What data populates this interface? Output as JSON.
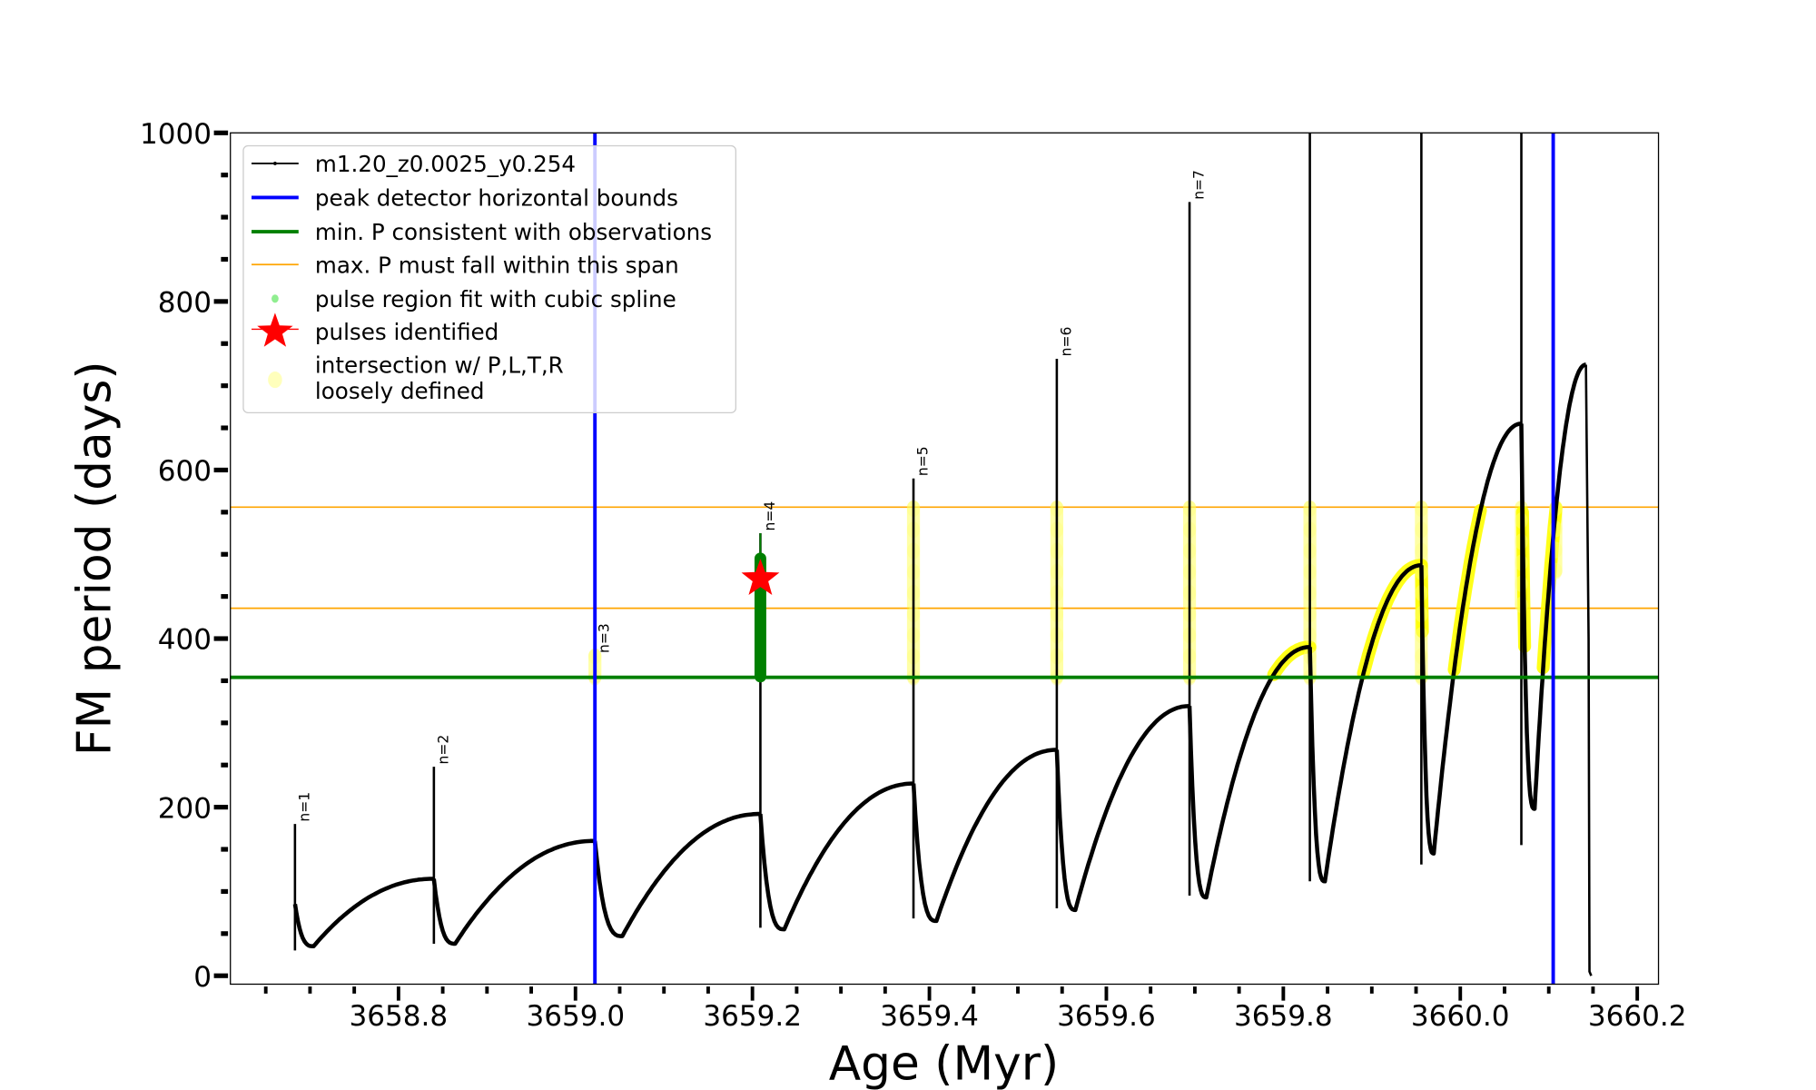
{
  "chart_data": {
    "type": "line",
    "xlabel": "Age (Myr)",
    "ylabel": "FM period (days)",
    "xlim": [
      3658.61,
      3660.224
    ],
    "ylim": [
      -10,
      1000
    ],
    "xticks": [
      3658.8,
      3659.0,
      3659.2,
      3659.4,
      3659.6,
      3659.8,
      3660.0,
      3660.2
    ],
    "xtick_labels": [
      "3658.8",
      "3659.0",
      "3659.2",
      "3659.4",
      "3659.6",
      "3659.8",
      "3660.0",
      "3660.2"
    ],
    "yticks": [
      0,
      200,
      400,
      600,
      800,
      1000
    ],
    "ytick_labels": [
      "0",
      "200",
      "400",
      "600",
      "800",
      "1000"
    ],
    "grid": false,
    "legend_position": "top-left",
    "legend": [
      "m1.20_z0.0025_y0.254",
      "peak detector horizontal bounds",
      "min. P consistent with observations",
      "max. P must fall within this span",
      "pulse region fit with cubic spline",
      "pulses identified",
      "intersection w/ P,L,T,R",
      "loosely defined"
    ],
    "colors": {
      "track": "#000000",
      "bounds": "#0000ff",
      "minP": "#008000",
      "maxP": "#ffa500",
      "spline": "#90ee90",
      "pulse": "#ff0000",
      "intersection": "#ffff00"
    },
    "cycles": [
      {
        "label": "n=1",
        "age": 3658.683,
        "spike_low": 30,
        "peak": 180,
        "start": 85,
        "min_age": 3658.704,
        "min": 35,
        "end_age": 3658.84,
        "end": 115
      },
      {
        "label": "n=2",
        "age": 3658.84,
        "spike_low": 38,
        "peak": 248,
        "start": 115,
        "min_age": 3658.864,
        "min": 38,
        "end_age": 3659.022,
        "end": 160
      },
      {
        "label": "n=3",
        "age": 3659.022,
        "spike_low": 45,
        "peak": 380,
        "start": 160,
        "min_age": 3659.053,
        "min": 47,
        "end_age": 3659.209,
        "end": 192
      },
      {
        "label": "n=4",
        "age": 3659.209,
        "spike_low": 57,
        "peak": 525,
        "start": 192,
        "min_age": 3659.236,
        "min": 55,
        "end_age": 3659.382,
        "end": 228
      },
      {
        "label": "n=5",
        "age": 3659.382,
        "spike_low": 68,
        "peak": 590,
        "start": 228,
        "min_age": 3659.408,
        "min": 65,
        "end_age": 3659.544,
        "end": 268
      },
      {
        "label": "n=6",
        "age": 3659.544,
        "spike_low": 80,
        "peak": 732,
        "start": 268,
        "min_age": 3659.565,
        "min": 78,
        "end_age": 3659.694,
        "end": 320
      },
      {
        "label": "n=7",
        "age": 3659.694,
        "spike_low": 95,
        "peak": 918,
        "start": 320,
        "min_age": 3659.713,
        "min": 93,
        "end_age": 3659.83,
        "end": 390
      },
      {
        "label": "",
        "age": 3659.83,
        "spike_low": 112,
        "peak": 1000,
        "start": 390,
        "min_age": 3659.847,
        "min": 112,
        "end_age": 3659.956,
        "end": 487
      },
      {
        "label": "",
        "age": 3659.956,
        "spike_low": 132,
        "peak": 1000,
        "start": 487,
        "min_age": 3659.97,
        "min": 145,
        "end_age": 3660.069,
        "end": 655
      },
      {
        "label": "",
        "age": 3660.069,
        "spike_low": 155,
        "peak": 1000,
        "start": 655,
        "min_age": 3660.084,
        "min": 198,
        "end_age": 3660.142,
        "end": 725
      }
    ],
    "final_drop": {
      "age": 3660.148,
      "value": 0
    },
    "peak_detector_bounds": [
      3659.022,
      3660.105
    ],
    "min_P": 354,
    "max_P_span": [
      436,
      556
    ],
    "pulse_identified": {
      "age": 3659.209,
      "period": 471
    },
    "spline_region": {
      "age": 3659.209,
      "range": [
        355,
        495
      ]
    },
    "intersection_spikes": [
      {
        "age": 3659.022,
        "range": [
          354,
          380
        ]
      },
      {
        "age": 3659.382,
        "range": [
          354,
          556
        ]
      },
      {
        "age": 3659.544,
        "range": [
          354,
          556
        ]
      },
      {
        "age": 3659.694,
        "range": [
          354,
          556
        ]
      },
      {
        "age": 3659.83,
        "range": [
          354,
          556
        ]
      },
      {
        "age": 3659.956,
        "range": [
          354,
          556
        ]
      },
      {
        "age": 3660.069,
        "range": [
          440,
          556
        ]
      },
      {
        "age": 3660.108,
        "range": [
          480,
          556
        ]
      }
    ]
  }
}
